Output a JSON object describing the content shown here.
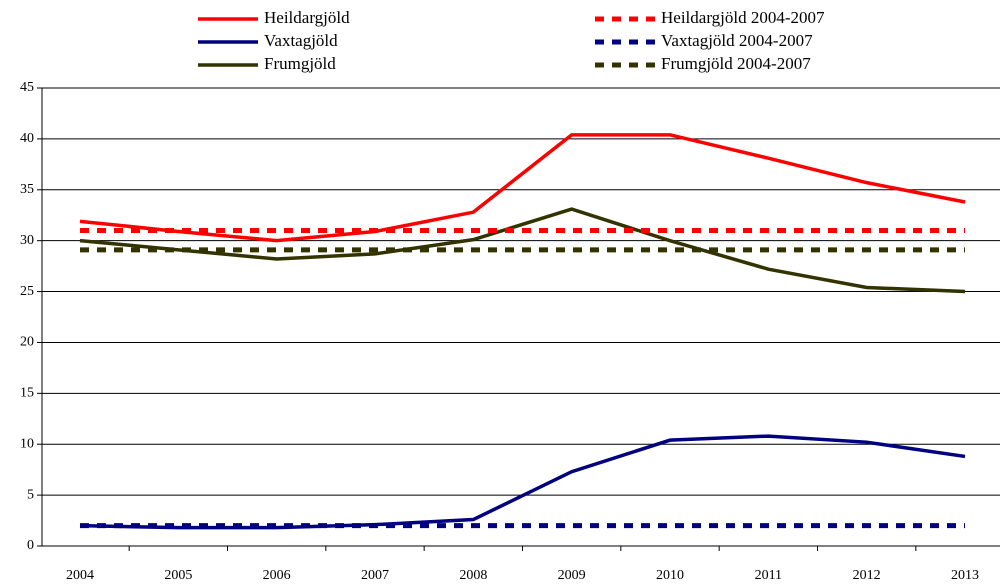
{
  "chart_data": {
    "type": "line",
    "categories": [
      "2004",
      "2005",
      "2006",
      "2007",
      "2008",
      "2009",
      "2010",
      "2011",
      "2012",
      "2013"
    ],
    "series": [
      {
        "name": "Heildargjöld",
        "color": "#ff0000",
        "style": "solid",
        "values": [
          31.9,
          30.9,
          30.0,
          30.9,
          32.8,
          40.4,
          40.4,
          38.1,
          35.7,
          33.8
        ]
      },
      {
        "name": "Vaxtagjöld",
        "color": "#000080",
        "style": "solid",
        "values": [
          2.0,
          1.8,
          1.8,
          2.1,
          2.6,
          7.3,
          10.4,
          10.8,
          10.2,
          8.8
        ]
      },
      {
        "name": "Frumgjöld",
        "color": "#333300",
        "style": "solid",
        "values": [
          30.0,
          29.1,
          28.2,
          28.7,
          30.1,
          33.1,
          30.0,
          27.2,
          25.4,
          25.0
        ]
      },
      {
        "name": "Heildargjöld 2004-2007",
        "color": "#ff0000",
        "style": "dashed",
        "values": [
          31,
          31,
          31,
          31,
          31,
          31,
          31,
          31,
          31,
          31
        ]
      },
      {
        "name": "Vaxtagjöld 2004-2007",
        "color": "#000080",
        "style": "dashed",
        "values": [
          2,
          2,
          2,
          2,
          2,
          2,
          2,
          2,
          2,
          2
        ]
      },
      {
        "name": "Frumgjöld 2004-2007",
        "color": "#333300",
        "style": "dashed",
        "values": [
          29.1,
          29.1,
          29.1,
          29.1,
          29.1,
          29.1,
          29.1,
          29.1,
          29.1,
          29.1
        ]
      }
    ],
    "ylim": [
      0,
      45
    ],
    "yticks": [
      0,
      5,
      10,
      15,
      20,
      25,
      30,
      35,
      40,
      45
    ],
    "grid": true
  }
}
